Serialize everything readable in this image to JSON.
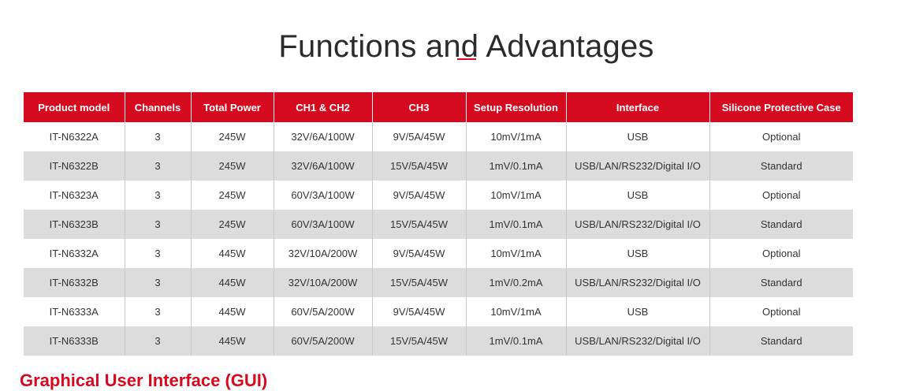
{
  "title": "Functions and Advantages",
  "table": {
    "headers": [
      "Product model",
      "Channels",
      "Total Power",
      "CH1 & CH2",
      "CH3",
      "Setup Resolution",
      "Interface",
      "Silicone Protective Case"
    ],
    "rows": [
      [
        "IT-N6322A",
        "3",
        "245W",
        "32V/6A/100W",
        "9V/5A/45W",
        "10mV/1mA",
        "USB",
        "Optional"
      ],
      [
        "IT-N6322B",
        "3",
        "245W",
        "32V/6A/100W",
        "15V/5A/45W",
        "1mV/0.1mA",
        "USB/LAN/RS232/Digital I/O",
        "Standard"
      ],
      [
        "IT-N6323A",
        "3",
        "245W",
        "60V/3A/100W",
        "9V/5A/45W",
        "10mV/1mA",
        "USB",
        "Optional"
      ],
      [
        "IT-N6323B",
        "3",
        "245W",
        "60V/3A/100W",
        "15V/5A/45W",
        "1mV/0.1mA",
        "USB/LAN/RS232/Digital I/O",
        "Standard"
      ],
      [
        "IT-N6332A",
        "3",
        "445W",
        "32V/10A/200W",
        "9V/5A/45W",
        "10mV/1mA",
        "USB",
        "Optional"
      ],
      [
        "IT-N6332B",
        "3",
        "445W",
        "32V/10A/200W",
        "15V/5A/45W",
        "1mV/0.2mA",
        "USB/LAN/RS232/Digital I/O",
        "Standard"
      ],
      [
        "IT-N6333A",
        "3",
        "445W",
        "60V/5A/200W",
        "9V/5A/45W",
        "10mV/1mA",
        "USB",
        "Optional"
      ],
      [
        "IT-N6333B",
        "3",
        "445W",
        "60V/5A/200W",
        "15V/5A/45W",
        "1mV/0.1mA",
        "USB/LAN/RS232/Digital I/O",
        "Standard"
      ]
    ]
  },
  "next_section": "Graphical User Interface (GUI)",
  "colors": {
    "accent": "#d50a1e",
    "stripe": "#dcdcdc"
  }
}
